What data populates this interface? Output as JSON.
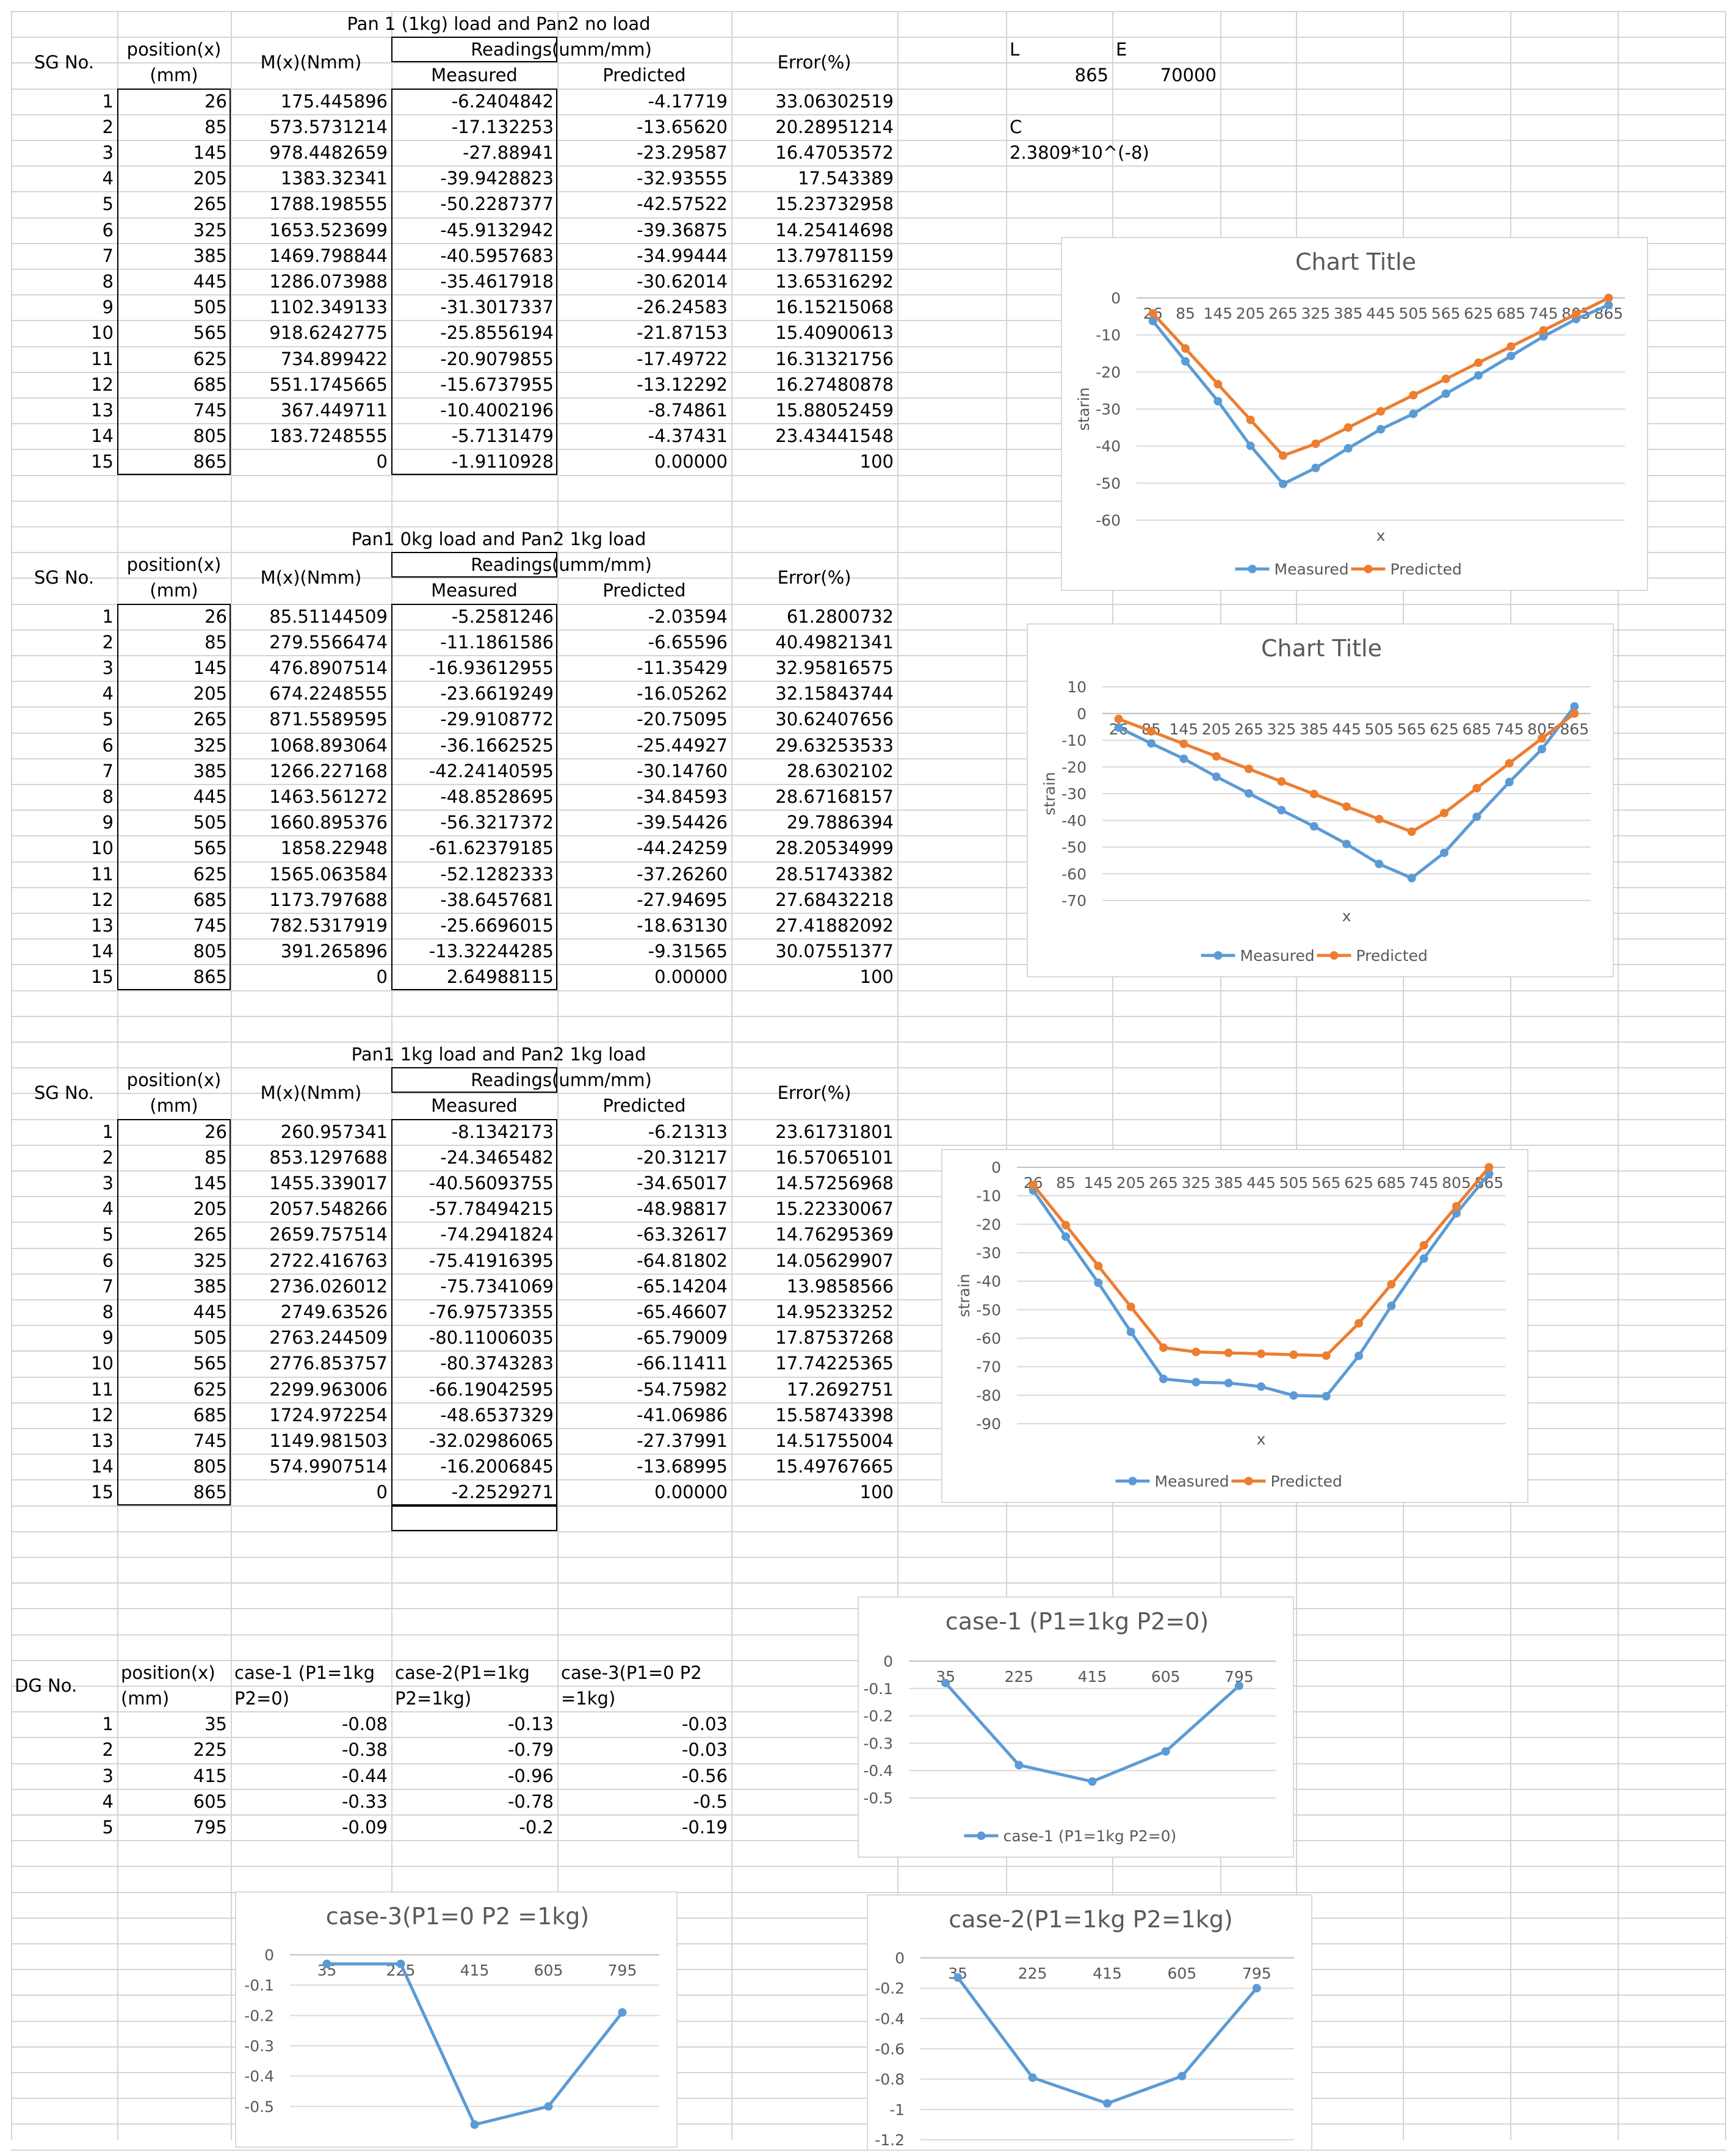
{
  "sheet": {
    "gridline_color": "#d4d4d4",
    "colors": {
      "measured": "#5b9bd5",
      "predicted": "#ed7d31",
      "axis_text": "#595959",
      "title_text": "#595959"
    },
    "constants": {
      "L_label": "L",
      "E_label": "E",
      "L_value": "865",
      "E_value": "70000",
      "C_label": "C",
      "C_value": "2.3809*10^(-8)"
    },
    "tables": [
      {
        "title": "Pan 1 (1kg) load and Pan2 no load",
        "headers": {
          "sg": "SG No.",
          "pos1": "position(x)",
          "pos2": "(mm)",
          "m": "M(x)(Nmm)",
          "readings": "Readings(umm/mm)",
          "measured": "Measured",
          "predicted": "Predicted",
          "error": "Error(%)"
        },
        "rows": [
          [
            "1",
            "26",
            "175.445896",
            "-6.2404842",
            "-4.17719",
            "33.06302519"
          ],
          [
            "2",
            "85",
            "573.5731214",
            "-17.132253",
            "-13.65620",
            "20.28951214"
          ],
          [
            "3",
            "145",
            "978.4482659",
            "-27.88941",
            "-23.29587",
            "16.47053572"
          ],
          [
            "4",
            "205",
            "1383.32341",
            "-39.9428823",
            "-32.93555",
            "17.543389"
          ],
          [
            "5",
            "265",
            "1788.198555",
            "-50.2287377",
            "-42.57522",
            "15.23732958"
          ],
          [
            "6",
            "325",
            "1653.523699",
            "-45.9132942",
            "-39.36875",
            "14.25414698"
          ],
          [
            "7",
            "385",
            "1469.798844",
            "-40.5957683",
            "-34.99444",
            "13.79781159"
          ],
          [
            "8",
            "445",
            "1286.073988",
            "-35.4617918",
            "-30.62014",
            "13.65316292"
          ],
          [
            "9",
            "505",
            "1102.349133",
            "-31.3017337",
            "-26.24583",
            "16.15215068"
          ],
          [
            "10",
            "565",
            "918.6242775",
            "-25.8556194",
            "-21.87153",
            "15.40900613"
          ],
          [
            "11",
            "625",
            "734.899422",
            "-20.9079855",
            "-17.49722",
            "16.31321756"
          ],
          [
            "12",
            "685",
            "551.1745665",
            "-15.6737955",
            "-13.12292",
            "16.27480878"
          ],
          [
            "13",
            "745",
            "367.449711",
            "-10.4002196",
            "-8.74861",
            "15.88052459"
          ],
          [
            "14",
            "805",
            "183.7248555",
            "-5.7131479",
            "-4.37431",
            "23.43441548"
          ],
          [
            "15",
            "865",
            "0",
            "-1.9110928",
            "0.00000",
            "100"
          ]
        ]
      },
      {
        "title": "Pan1 0kg load and Pan2 1kg load",
        "headers": {
          "sg": "SG No.",
          "pos1": "position(x)",
          "pos2": "(mm)",
          "m": "M(x)(Nmm)",
          "readings": "Readings(umm/mm)",
          "measured": "Measured",
          "predicted": "Predicted",
          "error": "Error(%)"
        },
        "rows": [
          [
            "1",
            "26",
            "85.51144509",
            "-5.2581246",
            "-2.03594",
            "61.2800732"
          ],
          [
            "2",
            "85",
            "279.5566474",
            "-11.1861586",
            "-6.65596",
            "40.49821341"
          ],
          [
            "3",
            "145",
            "476.8907514",
            "-16.93612955",
            "-11.35429",
            "32.95816575"
          ],
          [
            "4",
            "205",
            "674.2248555",
            "-23.6619249",
            "-16.05262",
            "32.15843744"
          ],
          [
            "5",
            "265",
            "871.5589595",
            "-29.9108772",
            "-20.75095",
            "30.62407656"
          ],
          [
            "6",
            "325",
            "1068.893064",
            "-36.1662525",
            "-25.44927",
            "29.63253533"
          ],
          [
            "7",
            "385",
            "1266.227168",
            "-42.24140595",
            "-30.14760",
            "28.6302102"
          ],
          [
            "8",
            "445",
            "1463.561272",
            "-48.8528695",
            "-34.84593",
            "28.67168157"
          ],
          [
            "9",
            "505",
            "1660.895376",
            "-56.3217372",
            "-39.54426",
            "29.7886394"
          ],
          [
            "10",
            "565",
            "1858.22948",
            "-61.62379185",
            "-44.24259",
            "28.20534999"
          ],
          [
            "11",
            "625",
            "1565.063584",
            "-52.1282333",
            "-37.26260",
            "28.51743382"
          ],
          [
            "12",
            "685",
            "1173.797688",
            "-38.6457681",
            "-27.94695",
            "27.68432218"
          ],
          [
            "13",
            "745",
            "782.5317919",
            "-25.6696015",
            "-18.63130",
            "27.41882092"
          ],
          [
            "14",
            "805",
            "391.265896",
            "-13.32244285",
            "-9.31565",
            "30.07551377"
          ],
          [
            "15",
            "865",
            "0",
            "2.64988115",
            "0.00000",
            "100"
          ]
        ]
      },
      {
        "title": "Pan1 1kg load and Pan2 1kg load",
        "headers": {
          "sg": "SG No.",
          "pos1": "position(x)",
          "pos2": "(mm)",
          "m": "M(x)(Nmm)",
          "readings": "Readings(umm/mm)",
          "measured": "Measured",
          "predicted": "Predicted",
          "error": "Error(%)"
        },
        "rows": [
          [
            "1",
            "26",
            "260.957341",
            "-8.1342173",
            "-6.21313",
            "23.61731801"
          ],
          [
            "2",
            "85",
            "853.1297688",
            "-24.3465482",
            "-20.31217",
            "16.57065101"
          ],
          [
            "3",
            "145",
            "1455.339017",
            "-40.56093755",
            "-34.65017",
            "14.57256968"
          ],
          [
            "4",
            "205",
            "2057.548266",
            "-57.78494215",
            "-48.98817",
            "15.22330067"
          ],
          [
            "5",
            "265",
            "2659.757514",
            "-74.2941824",
            "-63.32617",
            "14.76295369"
          ],
          [
            "6",
            "325",
            "2722.416763",
            "-75.41916395",
            "-64.81802",
            "14.05629907"
          ],
          [
            "7",
            "385",
            "2736.026012",
            "-75.7341069",
            "-65.14204",
            "13.9858566"
          ],
          [
            "8",
            "445",
            "2749.63526",
            "-76.97573355",
            "-65.46607",
            "14.95233252"
          ],
          [
            "9",
            "505",
            "2763.244509",
            "-80.11006035",
            "-65.79009",
            "17.87537268"
          ],
          [
            "10",
            "565",
            "2776.853757",
            "-80.3743283",
            "-66.11411",
            "17.74225365"
          ],
          [
            "11",
            "625",
            "2299.963006",
            "-66.19042595",
            "-54.75982",
            "17.2692751"
          ],
          [
            "12",
            "685",
            "1724.972254",
            "-48.6537329",
            "-41.06986",
            "15.58743398"
          ],
          [
            "13",
            "745",
            "1149.981503",
            "-32.02986065",
            "-27.37991",
            "14.51755004"
          ],
          [
            "14",
            "805",
            "574.9907514",
            "-16.2006845",
            "-13.68995",
            "15.49767665"
          ],
          [
            "15",
            "865",
            "0",
            "-2.2529271",
            "0.00000",
            "100"
          ]
        ]
      }
    ],
    "dg_table": {
      "headers": {
        "dg": "DG No.",
        "pos1": "position(x)",
        "pos2": "(mm)",
        "c1a": "case-1 (P1=1kg",
        "c1b": "P2=0)",
        "c2a": "case-2(P1=1kg",
        "c2b": "P2=1kg)",
        "c3a": "case-3(P1=0 P2",
        "c3b": "=1kg)"
      },
      "rows": [
        [
          "1",
          "35",
          "-0.08",
          "-0.13",
          "-0.03"
        ],
        [
          "2",
          "225",
          "-0.38",
          "-0.79",
          "-0.03"
        ],
        [
          "3",
          "415",
          "-0.44",
          "-0.96",
          "-0.56"
        ],
        [
          "4",
          "605",
          "-0.33",
          "-0.78",
          "-0.5"
        ],
        [
          "5",
          "795",
          "-0.09",
          "-0.2",
          "-0.19"
        ]
      ]
    }
  },
  "chart_data": [
    {
      "type": "line",
      "title": "Chart Title",
      "xlabel": "x",
      "ylabel": "starin",
      "categories": [
        "26",
        "85",
        "145",
        "205",
        "265",
        "325",
        "385",
        "445",
        "505",
        "565",
        "625",
        "685",
        "745",
        "805",
        "865"
      ],
      "ylim": [
        -60,
        0
      ],
      "yticks": [
        0,
        -10,
        -20,
        -30,
        -40,
        -50,
        -60
      ],
      "legend": "bottom",
      "series": [
        {
          "name": "Measured",
          "values": [
            -6.24,
            -17.13,
            -27.89,
            -39.94,
            -50.23,
            -45.91,
            -40.6,
            -35.46,
            -31.3,
            -25.86,
            -20.91,
            -15.67,
            -10.4,
            -5.71,
            -1.91
          ]
        },
        {
          "name": "Predicted",
          "values": [
            -4.18,
            -13.66,
            -23.3,
            -32.94,
            -42.58,
            -39.37,
            -34.99,
            -30.62,
            -26.25,
            -21.87,
            -17.5,
            -13.12,
            -8.75,
            -4.37,
            0
          ]
        }
      ]
    },
    {
      "type": "line",
      "title": "Chart Title",
      "xlabel": "x",
      "ylabel": "strain",
      "categories": [
        "26",
        "85",
        "145",
        "205",
        "265",
        "325",
        "385",
        "445",
        "505",
        "565",
        "625",
        "685",
        "745",
        "805",
        "865"
      ],
      "ylim": [
        -70,
        10
      ],
      "yticks": [
        10,
        0,
        -10,
        -20,
        -30,
        -40,
        -50,
        -60,
        -70
      ],
      "legend": "bottom",
      "series": [
        {
          "name": "Measured",
          "values": [
            -5.26,
            -11.19,
            -16.94,
            -23.66,
            -29.91,
            -36.17,
            -42.24,
            -48.85,
            -56.32,
            -61.62,
            -52.13,
            -38.65,
            -25.67,
            -13.32,
            2.65
          ]
        },
        {
          "name": "Predicted",
          "values": [
            -2.04,
            -6.66,
            -11.35,
            -16.05,
            -20.75,
            -25.45,
            -30.15,
            -34.85,
            -39.54,
            -44.24,
            -37.26,
            -27.95,
            -18.63,
            -9.32,
            0
          ]
        }
      ]
    },
    {
      "type": "line",
      "title": "",
      "xlabel": "x",
      "ylabel": "strain",
      "categories": [
        "26",
        "85",
        "145",
        "205",
        "265",
        "325",
        "385",
        "445",
        "505",
        "565",
        "625",
        "685",
        "745",
        "805",
        "865"
      ],
      "ylim": [
        -90,
        0
      ],
      "yticks": [
        0,
        -10,
        -20,
        -30,
        -40,
        -50,
        -60,
        -70,
        -80,
        -90
      ],
      "legend": "bottom",
      "series": [
        {
          "name": "Measured",
          "values": [
            -8.13,
            -24.35,
            -40.56,
            -57.78,
            -74.29,
            -75.42,
            -75.73,
            -76.98,
            -80.11,
            -80.37,
            -66.19,
            -48.65,
            -32.03,
            -16.2,
            -2.25
          ]
        },
        {
          "name": "Predicted",
          "values": [
            -6.21,
            -20.31,
            -34.65,
            -48.99,
            -63.33,
            -64.82,
            -65.14,
            -65.47,
            -65.79,
            -66.11,
            -54.76,
            -41.07,
            -27.38,
            -13.69,
            0
          ]
        }
      ]
    },
    {
      "type": "line",
      "title": "case-1 (P1=1kg P2=0)",
      "categories": [
        "35",
        "225",
        "415",
        "605",
        "795"
      ],
      "ylim": [
        -0.5,
        0
      ],
      "yticks": [
        0,
        -0.1,
        -0.2,
        -0.3,
        -0.4,
        -0.5
      ],
      "legend": "bottom",
      "series": [
        {
          "name": "case-1 (P1=1kg P2=0)",
          "values": [
            -0.08,
            -0.38,
            -0.44,
            -0.33,
            -0.09
          ]
        }
      ]
    },
    {
      "type": "line",
      "title": "case-3(P1=0 P2 =1kg)",
      "categories": [
        "35",
        "225",
        "415",
        "605",
        "795"
      ],
      "ylim": [
        -0.6,
        0
      ],
      "yticks": [
        0,
        -0.1,
        -0.2,
        -0.3,
        -0.4,
        -0.5
      ],
      "series": [
        {
          "name": "",
          "values": [
            -0.03,
            -0.03,
            -0.56,
            -0.5,
            -0.19
          ]
        }
      ]
    },
    {
      "type": "line",
      "title": "case-2(P1=1kg P2=1kg)",
      "categories": [
        "35",
        "225",
        "415",
        "605",
        "795"
      ],
      "ylim": [
        -1.2,
        0
      ],
      "yticks": [
        0,
        -0.2,
        -0.4,
        -0.6,
        -0.8,
        -1,
        -1.2
      ],
      "series": [
        {
          "name": "",
          "values": [
            -0.13,
            -0.79,
            -0.96,
            -0.78,
            -0.2
          ]
        }
      ]
    }
  ]
}
